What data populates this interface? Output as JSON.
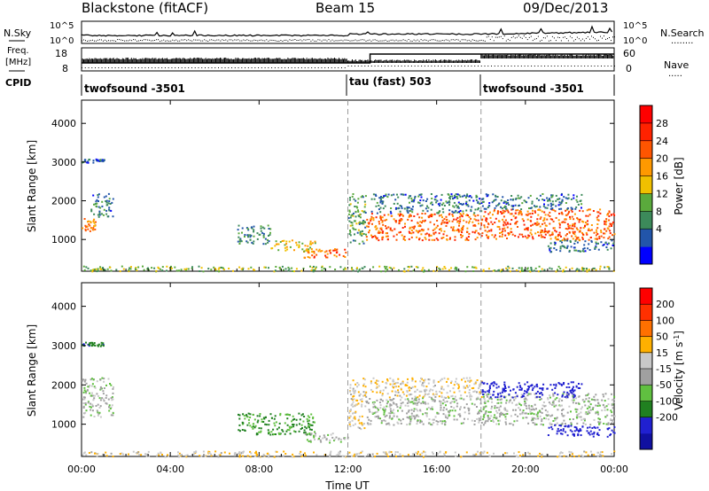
{
  "header": {
    "title": "Blackstone (fitACF)",
    "beam": "Beam 15",
    "date": "09/Dec/2013"
  },
  "left_labels": {
    "nsky": "N.Sky",
    "freq_line1": "Freq.",
    "freq_line2": "[MHz]",
    "cpid": "CPID"
  },
  "right_labels": {
    "nsearch": "N.Search",
    "nsearch_dots": "........",
    "nave": "Nave",
    "nave_dots": "....."
  },
  "noise_ticks": {
    "left": [
      "10^5",
      "10^0"
    ],
    "right": [
      "10^5",
      "10^0"
    ]
  },
  "freq_ticks": {
    "left": [
      "18",
      "8"
    ],
    "right": [
      "60",
      "0"
    ]
  },
  "cpid_segments": [
    {
      "label": "twofsound -3501",
      "start_hour": 0
    },
    {
      "label": "tau (fast) 503",
      "start_hour": 12
    },
    {
      "label": "twofsound -3501",
      "start_hour": 18
    }
  ],
  "colors": {
    "power_scale": [
      "#0000ff",
      "#2255aa",
      "#3c8a5a",
      "#5aaa3c",
      "#f0c000",
      "#ff9900",
      "#ff5500",
      "#ff2200",
      "#ff0000"
    ],
    "velocity_scale": [
      "#1010a0",
      "#2020d0",
      "#208020",
      "#60c040",
      "#a0a0a0",
      "#c8c8c8",
      "#ffb000",
      "#ff7000",
      "#ff3000",
      "#ff0000"
    ]
  },
  "chart_data": [
    {
      "type": "heatmap",
      "panel": "power",
      "xlabel": "",
      "ylabel": "Slant Range [km]",
      "x_ticks": [
        "00:00",
        "04:00",
        "08:00",
        "12:00",
        "16:00",
        "20:00",
        "00:00"
      ],
      "xlim_hours": [
        0,
        24
      ],
      "y_ticks": [
        1000,
        2000,
        3000,
        4000
      ],
      "ylim": [
        180,
        4600
      ],
      "colorbar_label": "Power [dB]",
      "colorbar_ticks": [
        28,
        24,
        20,
        16,
        12,
        8,
        4
      ],
      "colorbar_range": [
        0,
        32
      ],
      "scatter_regions": [
        {
          "hour_start": 0.0,
          "hour_end": 0.6,
          "range_low": 1200,
          "range_high": 1600,
          "value": 24
        },
        {
          "hour_start": 0.4,
          "hour_end": 1.4,
          "range_low": 1600,
          "range_high": 2200,
          "value": 8
        },
        {
          "hour_start": 0.0,
          "hour_end": 1.0,
          "range_low": 3000,
          "range_high": 3100,
          "value": 6
        },
        {
          "hour_start": 7.0,
          "hour_end": 8.5,
          "range_low": 900,
          "range_high": 1400,
          "value": 10
        },
        {
          "hour_start": 8.5,
          "hour_end": 10.5,
          "range_low": 700,
          "range_high": 1000,
          "value": 18
        },
        {
          "hour_start": 10.0,
          "hour_end": 12.0,
          "range_low": 550,
          "range_high": 800,
          "value": 26
        },
        {
          "hour_start": 12.0,
          "hour_end": 12.8,
          "range_low": 900,
          "range_high": 2200,
          "value": 12
        },
        {
          "hour_start": 12.8,
          "hour_end": 18.0,
          "range_low": 1000,
          "range_high": 1700,
          "value": 26
        },
        {
          "hour_start": 13.0,
          "hour_end": 18.0,
          "range_low": 1700,
          "range_high": 2200,
          "value": 8
        },
        {
          "hour_start": 18.0,
          "hour_end": 24.0,
          "range_low": 1000,
          "range_high": 1800,
          "value": 26
        },
        {
          "hour_start": 18.0,
          "hour_end": 22.5,
          "range_low": 1800,
          "range_high": 2200,
          "value": 8
        },
        {
          "hour_start": 21.0,
          "hour_end": 24.0,
          "range_low": 700,
          "range_high": 1000,
          "value": 8
        },
        {
          "hour_start": 0.0,
          "hour_end": 24.0,
          "range_low": 190,
          "range_high": 330,
          "value": 14
        }
      ]
    },
    {
      "type": "heatmap",
      "panel": "velocity",
      "xlabel": "Time UT",
      "ylabel": "Slant Range [km]",
      "x_ticks": [
        "00:00",
        "04:00",
        "08:00",
        "12:00",
        "16:00",
        "20:00",
        "00:00"
      ],
      "xlim_hours": [
        0,
        24
      ],
      "y_ticks": [
        1000,
        2000,
        3000,
        4000
      ],
      "ylim": [
        180,
        4600
      ],
      "colorbar_label": "Velocity [m s^-1]",
      "colorbar_ticks": [
        200,
        100,
        50,
        15,
        -15,
        -50,
        -100,
        -200
      ],
      "colorbar_range": [
        -250,
        250
      ],
      "scatter_regions": [
        {
          "hour_start": 0.0,
          "hour_end": 1.4,
          "range_low": 1200,
          "range_high": 2200,
          "value": 0
        },
        {
          "hour_start": 0.0,
          "hour_end": 1.0,
          "range_low": 3000,
          "range_high": 3100,
          "value": -80
        },
        {
          "hour_start": 7.0,
          "hour_end": 10.5,
          "range_low": 750,
          "range_high": 1300,
          "value": -60
        },
        {
          "hour_start": 10.0,
          "hour_end": 12.0,
          "range_low": 550,
          "range_high": 800,
          "value": 0
        },
        {
          "hour_start": 12.0,
          "hour_end": 12.8,
          "range_low": 900,
          "range_high": 2200,
          "value": 40
        },
        {
          "hour_start": 12.8,
          "hour_end": 18.0,
          "range_low": 1000,
          "range_high": 1700,
          "value": 0
        },
        {
          "hour_start": 13.0,
          "hour_end": 18.0,
          "range_low": 1700,
          "range_high": 2200,
          "value": 40
        },
        {
          "hour_start": 18.0,
          "hour_end": 24.0,
          "range_low": 1000,
          "range_high": 1800,
          "value": 0
        },
        {
          "hour_start": 18.0,
          "hour_end": 22.5,
          "range_low": 1700,
          "range_high": 2100,
          "value": -150
        },
        {
          "hour_start": 21.0,
          "hour_end": 24.0,
          "range_low": 700,
          "range_high": 1000,
          "value": -150
        },
        {
          "hour_start": 0.0,
          "hour_end": 24.0,
          "range_low": 190,
          "range_high": 330,
          "value": 40
        }
      ]
    }
  ]
}
